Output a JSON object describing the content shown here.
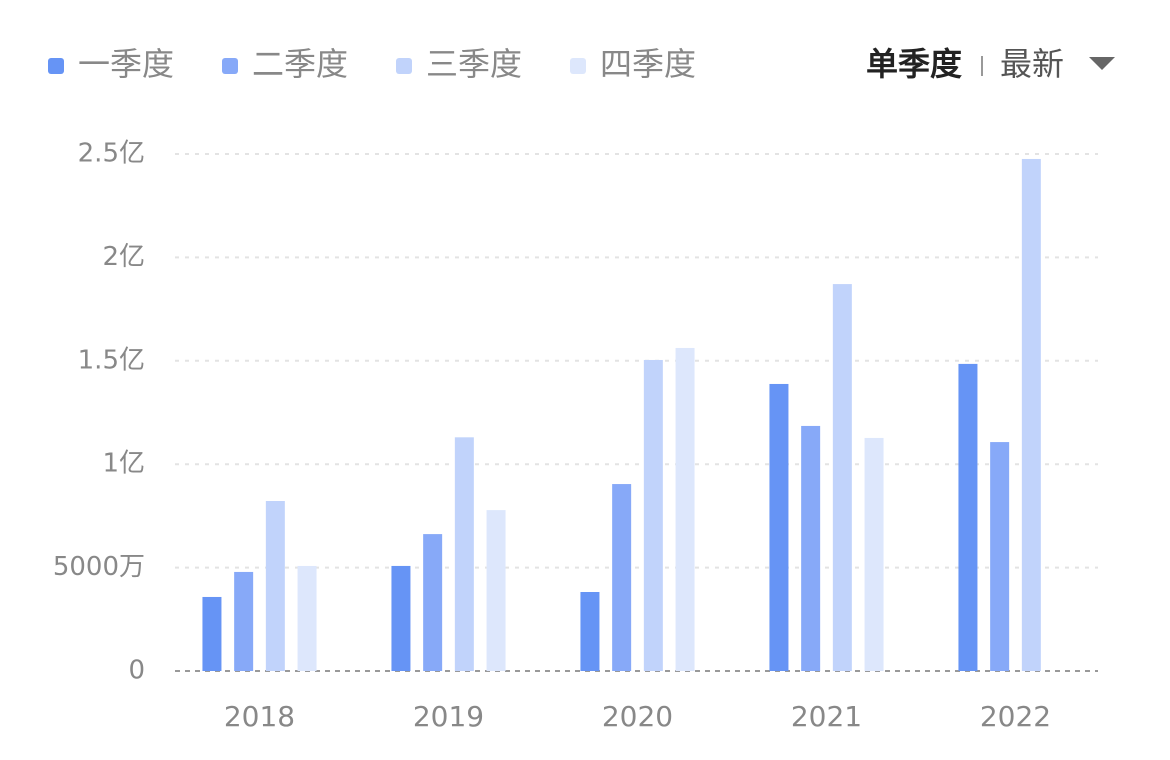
{
  "chart_data": {
    "type": "bar",
    "categories": [
      "2018",
      "2019",
      "2020",
      "2021",
      "2022"
    ],
    "series": [
      {
        "name": "一季度",
        "color": "#6694f5",
        "values": [
          0.358,
          0.508,
          0.382,
          1.388,
          1.485
        ]
      },
      {
        "name": "二季度",
        "color": "#87a9f8",
        "values": [
          0.479,
          0.662,
          0.904,
          1.185,
          1.107
        ]
      },
      {
        "name": "三季度",
        "color": "#c1d3fb",
        "values": [
          0.822,
          1.13,
          1.504,
          1.871,
          2.476
        ]
      },
      {
        "name": "四季度",
        "color": "#dde7fc",
        "values": [
          0.508,
          0.778,
          1.562,
          1.127,
          null
        ]
      }
    ],
    "ylim": [
      0,
      2.5
    ],
    "yticks": [
      {
        "value": 0,
        "label": "0"
      },
      {
        "value": 0.5,
        "label": "5000万"
      },
      {
        "value": 1,
        "label": "1亿"
      },
      {
        "value": 1.5,
        "label": "1.5亿"
      },
      {
        "value": 2,
        "label": "2亿"
      },
      {
        "value": 2.5,
        "label": "2.5亿"
      }
    ],
    "grid": true,
    "controls": {
      "period": "单季度",
      "sort": "最新"
    }
  }
}
